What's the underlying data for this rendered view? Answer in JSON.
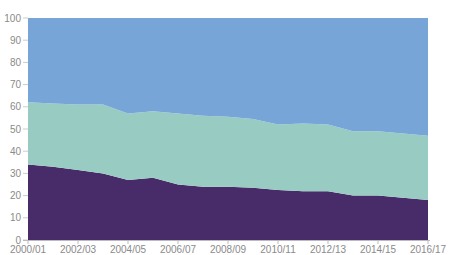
{
  "chart_data": {
    "type": "area",
    "stacked": true,
    "grid": false,
    "categories": [
      "2000/01",
      null,
      "2002/03",
      null,
      "2004/05",
      null,
      "2006/07",
      null,
      "2008/09",
      null,
      "2010/11",
      null,
      "2012/13",
      null,
      "2014/15",
      null,
      "2016/17"
    ],
    "series": [
      {
        "color": "#482b69",
        "values": [
          34,
          33,
          31.5,
          30,
          27,
          28,
          25,
          24,
          24,
          23.5,
          22.5,
          22,
          22,
          20,
          20,
          19,
          18
        ]
      },
      {
        "color": "#98ccc2",
        "values": [
          28,
          28.5,
          29.5,
          31,
          30,
          30,
          32,
          32,
          31.5,
          31,
          29.5,
          30.5,
          30,
          29,
          29,
          29,
          29
        ]
      },
      {
        "color": "#77a5d8",
        "values": [
          38,
          38.5,
          39,
          39,
          43,
          42,
          43,
          44,
          44.5,
          45.5,
          48,
          47.5,
          48,
          51,
          51,
          52,
          53
        ]
      }
    ],
    "ylim": [
      0,
      100
    ],
    "yticks": [
      0,
      10,
      20,
      30,
      40,
      50,
      60,
      70,
      80,
      90,
      100
    ]
  }
}
